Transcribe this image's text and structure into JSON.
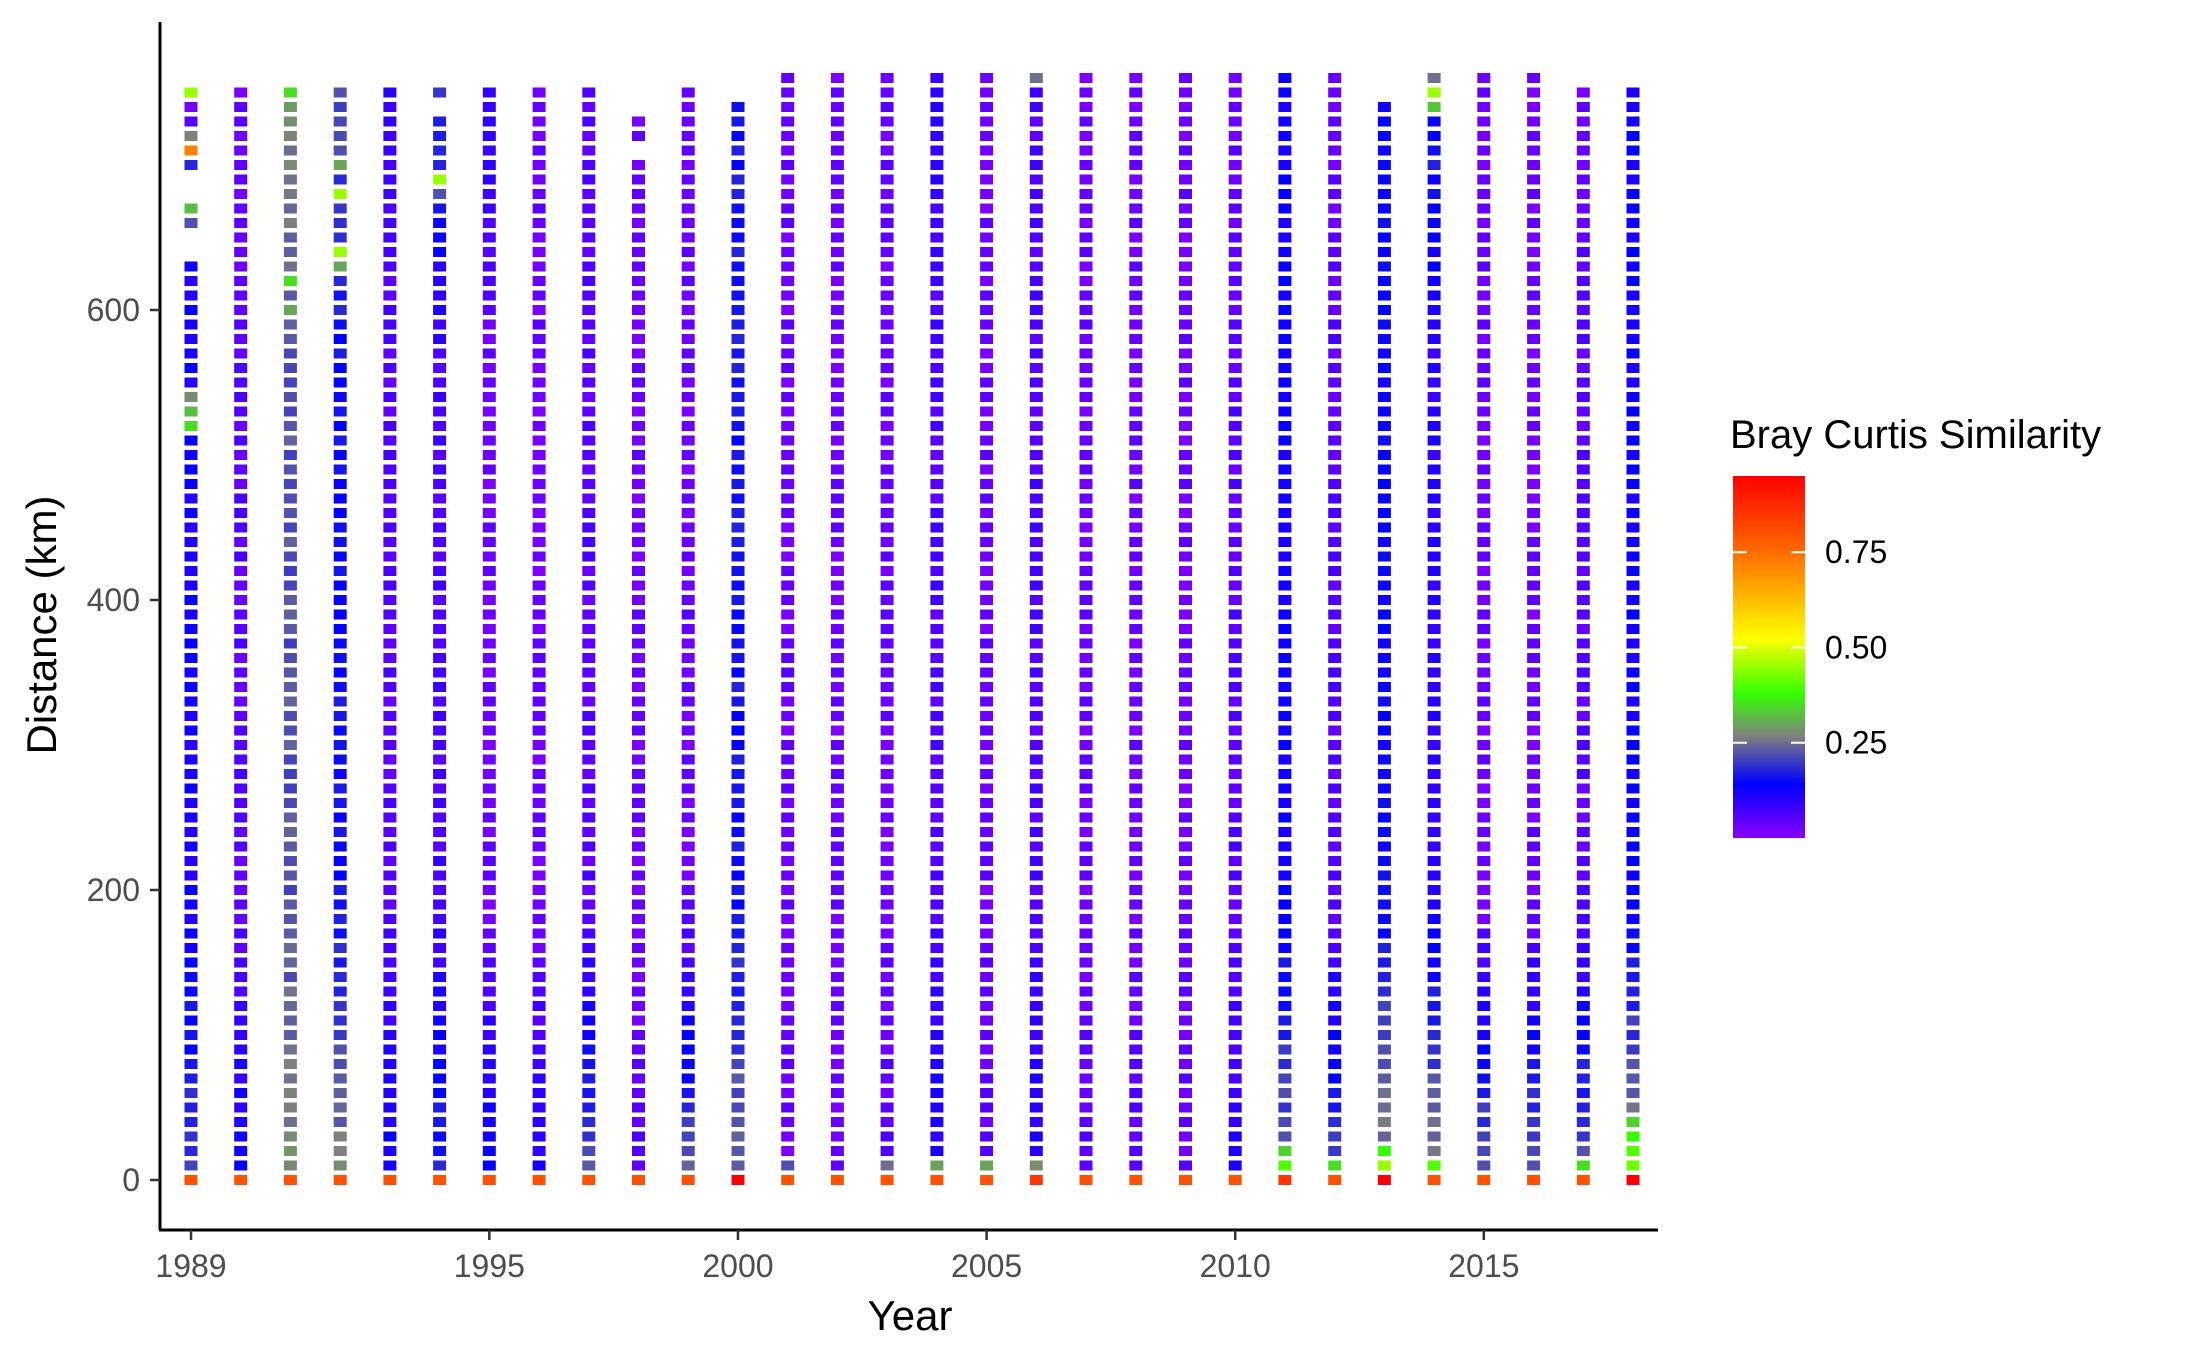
{
  "chart_data": {
    "type": "heatmap",
    "title": "",
    "xlabel": "Year",
    "ylabel": "Distance (km)",
    "x_ticks": [
      "1989",
      "1995",
      "2000",
      "2005",
      "2010",
      "2015"
    ],
    "x_tick_values": [
      1989,
      1995,
      2000,
      2005,
      2010,
      2015
    ],
    "y_ticks": [
      "0",
      "200",
      "400",
      "600"
    ],
    "y_tick_values": [
      0,
      200,
      400,
      600
    ],
    "xlim": [
      1988.4,
      2018.7
    ],
    "ylim": [
      -35,
      795
    ],
    "distance_step_km": 10,
    "grid": false,
    "legend": {
      "title": "Bray Curtis Similarity",
      "position": "right",
      "ticks": [
        "0.75",
        "0.50",
        "0.25"
      ],
      "tick_values": [
        0.75,
        0.5,
        0.25
      ],
      "range": [
        0.0,
        0.95
      ]
    },
    "color_scale": [
      "#8800ff",
      "#0000ff",
      "#7f7f7f",
      "#33ff00",
      "#ffff00",
      "#ff6600",
      "#ff0000"
    ],
    "columns": [
      {
        "x": 1989,
        "max": 750,
        "at0": 0.8,
        "low": 0.2,
        "mid": 0.12,
        "top": 0.12,
        "gaps": [
          640,
          650,
          680,
          690
        ],
        "specials": [
          [
            750,
            0.45
          ],
          [
            740,
            0.02
          ],
          [
            730,
            0.05
          ],
          [
            720,
            0.27
          ],
          [
            710,
            0.72
          ],
          [
            700,
            0.18
          ],
          [
            670,
            0.32
          ],
          [
            660,
            0.22
          ],
          [
            540,
            0.28
          ],
          [
            530,
            0.32
          ],
          [
            520,
            0.35
          ]
        ]
      },
      {
        "x": 1990,
        "max": 750,
        "at0": 0.8,
        "low": 0.14,
        "mid": 0.05,
        "top": 0.03,
        "gaps": [],
        "specials": []
      },
      {
        "x": 1991,
        "max": 750,
        "at0": 0.8,
        "low": 0.28,
        "mid": 0.22,
        "top": 0.28,
        "gaps": [],
        "specials": [
          [
            750,
            0.35
          ],
          [
            620,
            0.35
          ],
          [
            600,
            0.3
          ]
        ]
      },
      {
        "x": 1992,
        "max": 750,
        "at0": 0.8,
        "low": 0.27,
        "mid": 0.15,
        "top": 0.22,
        "gaps": [],
        "specials": [
          [
            700,
            0.3
          ],
          [
            680,
            0.45
          ],
          [
            640,
            0.45
          ],
          [
            630,
            0.3
          ]
        ]
      },
      {
        "x": 1993,
        "max": 750,
        "at0": 0.8,
        "low": 0.14,
        "mid": 0.05,
        "top": 0.1,
        "gaps": [],
        "specials": []
      },
      {
        "x": 1994,
        "max": 750,
        "at0": 0.8,
        "low": 0.18,
        "mid": 0.07,
        "top": 0.2,
        "gaps": [
          740
        ],
        "specials": [
          [
            690,
            0.45
          ],
          [
            680,
            0.22
          ]
        ]
      },
      {
        "x": 1995,
        "max": 750,
        "at0": 0.8,
        "low": 0.16,
        "mid": 0.03,
        "top": 0.1,
        "gaps": [],
        "specials": []
      },
      {
        "x": 1996,
        "max": 750,
        "at0": 0.8,
        "low": 0.12,
        "mid": 0.03,
        "top": 0.03,
        "gaps": [],
        "specials": []
      },
      {
        "x": 1997,
        "max": 750,
        "at0": 0.8,
        "low": 0.22,
        "mid": 0.05,
        "top": 0.05,
        "gaps": [],
        "specials": []
      },
      {
        "x": 1998,
        "max": 730,
        "at0": 0.8,
        "low": 0.05,
        "mid": 0.03,
        "top": 0.03,
        "gaps": [
          710
        ],
        "specials": []
      },
      {
        "x": 1999,
        "max": 750,
        "at0": 0.8,
        "low": 0.24,
        "mid": 0.03,
        "top": 0.03,
        "gaps": [],
        "specials": []
      },
      {
        "x": 2000,
        "max": 740,
        "at0": 0.95,
        "low": 0.24,
        "mid": 0.16,
        "top": 0.16,
        "gaps": [],
        "specials": []
      },
      {
        "x": 2001,
        "max": 760,
        "at0": 0.8,
        "low": 0.03,
        "mid": 0.03,
        "top": 0.03,
        "gaps": [],
        "specials": [
          [
            10,
            0.22
          ]
        ]
      },
      {
        "x": 2002,
        "max": 760,
        "at0": 0.8,
        "low": 0.03,
        "mid": 0.03,
        "top": 0.03,
        "gaps": [],
        "specials": []
      },
      {
        "x": 2003,
        "max": 760,
        "at0": 0.8,
        "low": 0.05,
        "mid": 0.03,
        "top": 0.03,
        "gaps": [],
        "specials": [
          [
            10,
            0.25
          ]
        ]
      },
      {
        "x": 2004,
        "max": 760,
        "at0": 0.8,
        "low": 0.12,
        "mid": 0.06,
        "top": 0.1,
        "gaps": [],
        "specials": [
          [
            10,
            0.3
          ]
        ]
      },
      {
        "x": 2005,
        "max": 760,
        "at0": 0.8,
        "low": 0.04,
        "mid": 0.03,
        "top": 0.03,
        "gaps": [],
        "specials": [
          [
            10,
            0.3
          ]
        ]
      },
      {
        "x": 2006,
        "max": 760,
        "at0": 0.85,
        "low": 0.12,
        "mid": 0.06,
        "top": 0.06,
        "gaps": [],
        "specials": [
          [
            760,
            0.25
          ],
          [
            10,
            0.28
          ]
        ]
      },
      {
        "x": 2007,
        "max": 760,
        "at0": 0.8,
        "low": 0.05,
        "mid": 0.03,
        "top": 0.03,
        "gaps": [],
        "specials": []
      },
      {
        "x": 2008,
        "max": 760,
        "at0": 0.8,
        "low": 0.05,
        "mid": 0.03,
        "top": 0.03,
        "gaps": [],
        "specials": []
      },
      {
        "x": 2009,
        "max": 760,
        "at0": 0.8,
        "low": 0.04,
        "mid": 0.03,
        "top": 0.03,
        "gaps": [],
        "specials": []
      },
      {
        "x": 2010,
        "max": 760,
        "at0": 0.8,
        "low": 0.1,
        "mid": 0.05,
        "top": 0.03,
        "gaps": [],
        "specials": []
      },
      {
        "x": 2011,
        "max": 760,
        "at0": 0.85,
        "low": 0.24,
        "mid": 0.13,
        "top": 0.13,
        "gaps": [],
        "specials": [
          [
            10,
            0.4
          ],
          [
            20,
            0.34
          ]
        ]
      },
      {
        "x": 2012,
        "max": 760,
        "at0": 0.8,
        "low": 0.22,
        "mid": 0.05,
        "top": 0.03,
        "gaps": [],
        "specials": [
          [
            10,
            0.35
          ]
        ]
      },
      {
        "x": 2013,
        "max": 740,
        "at0": 0.95,
        "low": 0.28,
        "mid": 0.14,
        "top": 0.14,
        "gaps": [],
        "specials": [
          [
            10,
            0.45
          ],
          [
            20,
            0.38
          ]
        ]
      },
      {
        "x": 2014,
        "max": 760,
        "at0": 0.8,
        "low": 0.28,
        "mid": 0.1,
        "top": 0.18,
        "gaps": [],
        "specials": [
          [
            750,
            0.45
          ],
          [
            740,
            0.33
          ],
          [
            760,
            0.25
          ],
          [
            10,
            0.4
          ]
        ]
      },
      {
        "x": 2015,
        "max": 760,
        "at0": 0.8,
        "low": 0.24,
        "mid": 0.03,
        "top": 0.03,
        "gaps": [],
        "specials": []
      },
      {
        "x": 2016,
        "max": 760,
        "at0": 0.8,
        "low": 0.24,
        "mid": 0.03,
        "top": 0.03,
        "gaps": [],
        "specials": []
      },
      {
        "x": 2017,
        "max": 750,
        "at0": 0.8,
        "low": 0.24,
        "mid": 0.05,
        "top": 0.03,
        "gaps": [],
        "specials": [
          [
            10,
            0.35
          ]
        ]
      },
      {
        "x": 2018,
        "max": 750,
        "at0": 0.95,
        "low": 0.28,
        "mid": 0.13,
        "top": 0.13,
        "gaps": [],
        "specials": [
          [
            10,
            0.42
          ],
          [
            20,
            0.4
          ],
          [
            30,
            0.38
          ],
          [
            40,
            0.34
          ]
        ]
      }
    ]
  }
}
